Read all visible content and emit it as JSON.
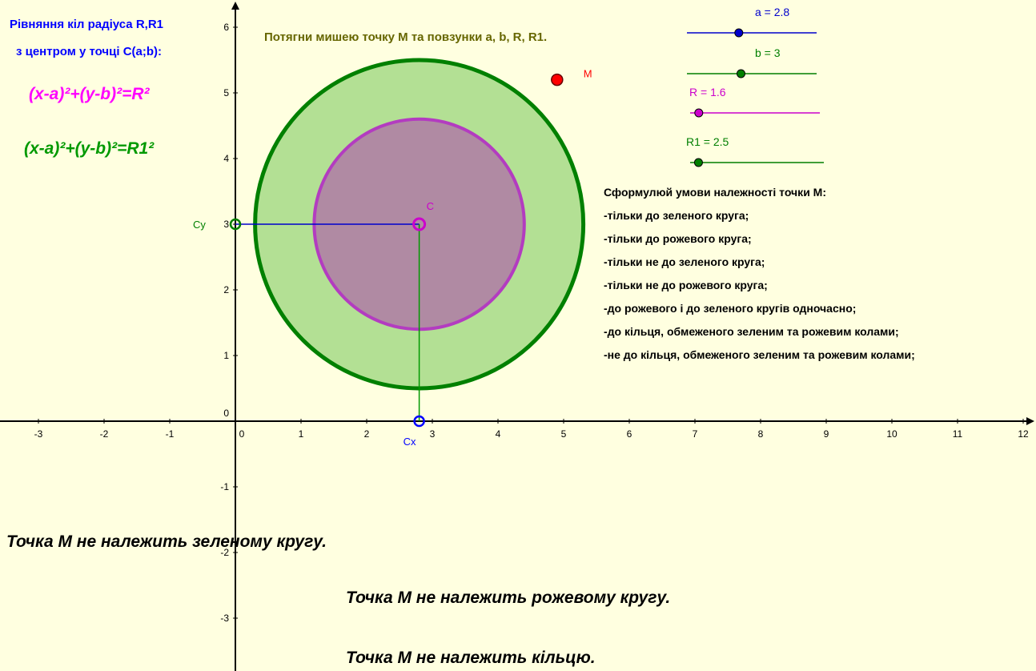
{
  "texts": {
    "equations_title_line1": "Рівняння кіл радіуса R,R1",
    "equations_title_line2": "з  центром у точці С(а;b):",
    "equation_pink": "(x-a)²+(y-b)²=R²",
    "equation_green": "(x-a)²+(y-b)²=R1²",
    "instruction": "Потягни мишею точку М та повзунки а, b, R, R1.",
    "task_title": "Сформулюй умови належності точки М:",
    "task_items": [
      "-тільки до зеленого круга;",
      "-тільки до рожевого круга;",
      "-тільки не до зеленого круга;",
      "-тільки не до рожевого круга;",
      "-до рожевого і до зеленого кругів одночасно;",
      "-до кільця, обмеженого зеленим та рожевим колами;",
      "-не до кільця, обмеженого зеленим та рожевим колами;"
    ],
    "status_green": "Точка М не належить зеленому кругу.",
    "status_pink": "Точка М не належить рожевому  кругу.",
    "status_ring": "Точка М не належить кільцю."
  },
  "sliders": {
    "a": {
      "label": "a = 2.8",
      "value": 2.8,
      "min": -2,
      "max": 10,
      "color": "#0000cc"
    },
    "b": {
      "label": "b = 3",
      "value": 3,
      "min": -2,
      "max": 10,
      "color": "#007f00"
    },
    "R": {
      "label": "R = 1.6",
      "value": 1.6,
      "min": 1,
      "max": 10,
      "color": "#cc00cc"
    },
    "R1": {
      "label": "R1 = 2.5",
      "value": 2.5,
      "min": 2,
      "max": 10,
      "color": "#007f00"
    }
  },
  "points": {
    "M": {
      "label": "M",
      "x": 4.9,
      "y": 5.2,
      "color": "#ff0000"
    },
    "C": {
      "label": "C",
      "x": 2.8,
      "y": 3,
      "color": "#cc00cc"
    },
    "Cx": {
      "label": "Cx",
      "x": 2.8,
      "y": 0,
      "color": "#0000ff"
    },
    "Cy": {
      "label": "Cy",
      "x": 0,
      "y": 3,
      "color": "#007f00"
    }
  },
  "axes": {
    "x_ticks": [
      "-3",
      "-2",
      "-1",
      "0",
      "1",
      "2",
      "3",
      "4",
      "5",
      "6",
      "7",
      "8",
      "9",
      "10",
      "11",
      "12"
    ],
    "y_ticks": [
      "-3",
      "-2",
      "-1",
      "0",
      "1",
      "2",
      "3",
      "4",
      "5",
      "6"
    ]
  },
  "colors": {
    "background": "#ffffe0",
    "green_circle_stroke": "#008000",
    "green_circle_fill": "#b3e094",
    "pink_circle_stroke": "#b33cc0",
    "pink_circle_fill": "#b08aa3",
    "blue_text": "#0000ff",
    "pink_text": "#ff00ff",
    "green_text": "#009900",
    "olive_text": "#666600"
  }
}
